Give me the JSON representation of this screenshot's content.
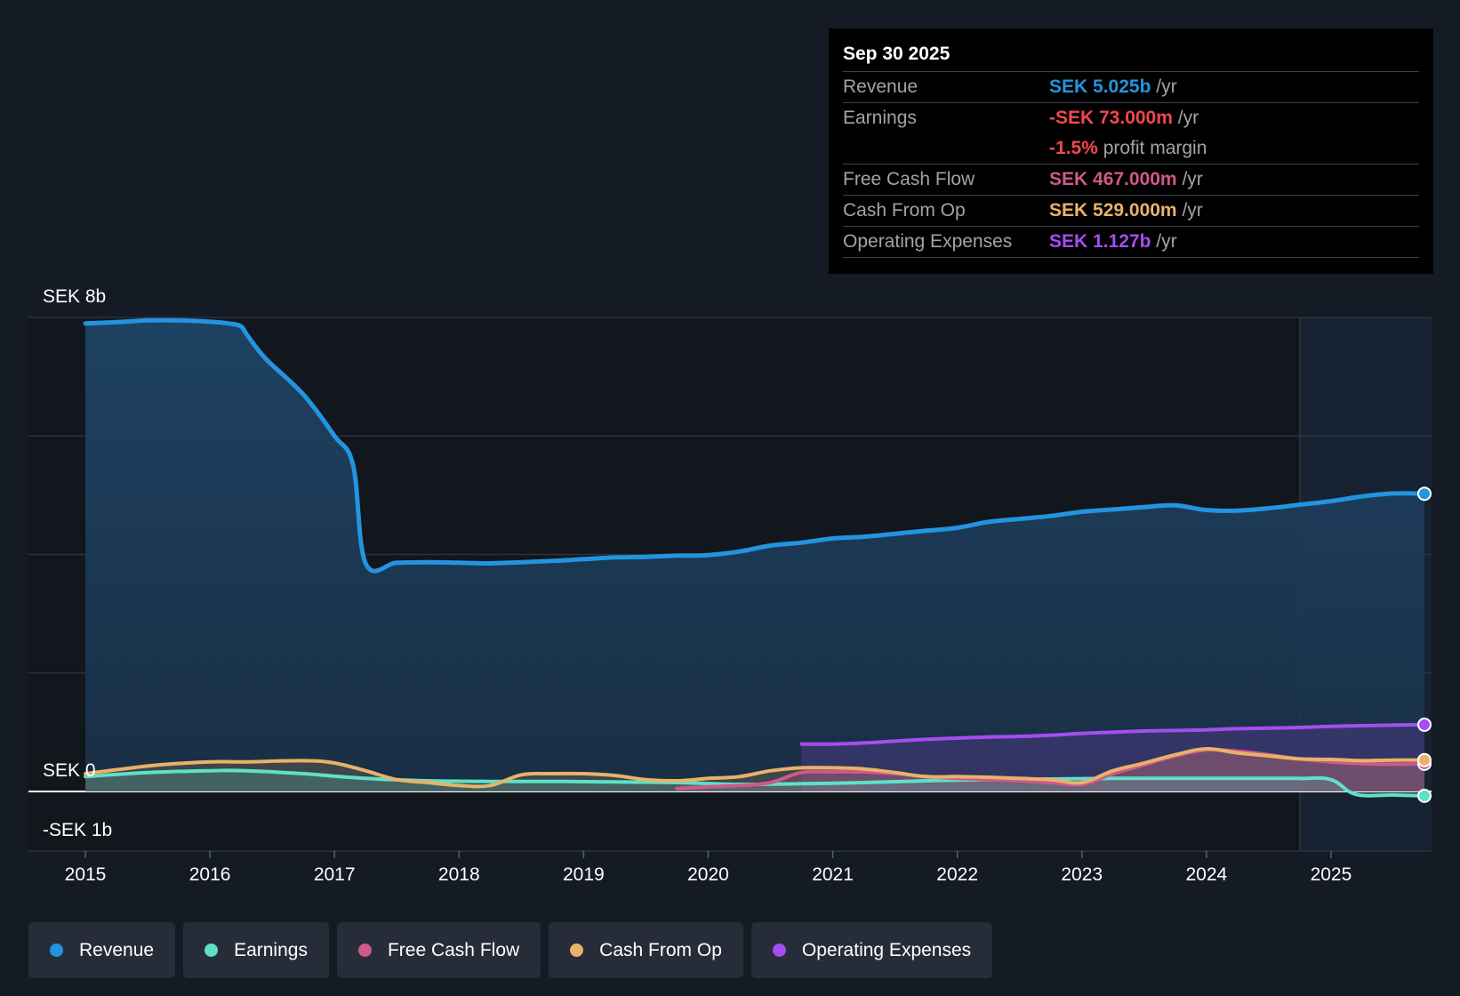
{
  "colors": {
    "background": "#151b24",
    "revenue": "#2394df",
    "earnings": "#5ee1c7",
    "free_cash_flow": "#d0588a",
    "cash_from_op": "#e8b26a",
    "operating_expenses": "#a44ef0"
  },
  "tooltip": {
    "date": "Sep 30 2025",
    "rows": [
      {
        "name": "Revenue",
        "value": "SEK 5.025b",
        "suffix": " /yr",
        "color": "#2394df"
      },
      {
        "name": "Earnings",
        "value": "-SEK 73.000m",
        "suffix": " /yr",
        "color": "#f0484e"
      },
      {
        "name": "",
        "value": "-1.5%",
        "suffix": " profit margin",
        "color": "#f0484e"
      },
      {
        "name": "Free Cash Flow",
        "value": "SEK 467.000m",
        "suffix": " /yr",
        "color": "#d0588a"
      },
      {
        "name": "Cash From Op",
        "value": "SEK 529.000m",
        "suffix": " /yr",
        "color": "#e8b26a"
      },
      {
        "name": "Operating Expenses",
        "value": "SEK 1.127b",
        "suffix": " /yr",
        "color": "#a44ef0"
      }
    ]
  },
  "legend": [
    {
      "label": "Revenue",
      "color": "#2394df",
      "icon": "revenue-dot-icon"
    },
    {
      "label": "Earnings",
      "color": "#5ee1c7",
      "icon": "earnings-dot-icon"
    },
    {
      "label": "Free Cash Flow",
      "color": "#d0588a",
      "icon": "free-cash-flow-dot-icon"
    },
    {
      "label": "Cash From Op",
      "color": "#e8b26a",
      "icon": "cash-from-op-dot-icon"
    },
    {
      "label": "Operating Expenses",
      "color": "#a44ef0",
      "icon": "operating-expenses-dot-icon"
    }
  ],
  "chart_data": {
    "type": "area",
    "title": "",
    "xlabel": "",
    "ylabel": "",
    "ylim": [
      -1,
      8
    ],
    "y_axis_labels": [
      {
        "value": 8,
        "label": "SEK 8b"
      },
      {
        "value": 0,
        "label": "SEK 0"
      },
      {
        "value": -1,
        "label": "-SEK 1b"
      }
    ],
    "gridlines": [
      0,
      2,
      4,
      6,
      8
    ],
    "xlim": [
      2014.55,
      2025.8
    ],
    "x_ticks": [
      2015,
      2016,
      2017,
      2018,
      2019,
      2020,
      2021,
      2022,
      2023,
      2024,
      2025
    ],
    "x_tick_labels": [
      "2015",
      "2016",
      "2017",
      "2018",
      "2019",
      "2020",
      "2021",
      "2022",
      "2023",
      "2024",
      "2025"
    ],
    "forecast_start": 2024.75,
    "series": [
      {
        "name": "Revenue",
        "key": "revenue",
        "x": [
          2015.0,
          2015.25,
          2015.5,
          2015.75,
          2016.0,
          2016.15,
          2016.25,
          2016.3,
          2016.45,
          2016.75,
          2017.0,
          2017.15,
          2017.25,
          2017.5,
          2017.75,
          2018.0,
          2018.25,
          2018.5,
          2018.75,
          2019.0,
          2019.25,
          2019.5,
          2019.75,
          2020.0,
          2020.25,
          2020.5,
          2020.75,
          2021.0,
          2021.25,
          2021.5,
          2021.75,
          2022.0,
          2022.25,
          2022.5,
          2022.75,
          2023.0,
          2023.25,
          2023.5,
          2023.75,
          2024.0,
          2024.25,
          2024.5,
          2024.75,
          2025.0,
          2025.25,
          2025.5,
          2025.75
        ],
        "values": [
          7.9,
          7.92,
          7.95,
          7.95,
          7.93,
          7.9,
          7.85,
          7.7,
          7.3,
          6.7,
          6.0,
          5.5,
          3.85,
          3.86,
          3.87,
          3.86,
          3.85,
          3.87,
          3.89,
          3.92,
          3.95,
          3.96,
          3.98,
          3.99,
          4.05,
          4.15,
          4.2,
          4.27,
          4.3,
          4.35,
          4.4,
          4.45,
          4.55,
          4.6,
          4.65,
          4.72,
          4.76,
          4.8,
          4.83,
          4.75,
          4.74,
          4.78,
          4.84,
          4.9,
          4.98,
          5.03,
          5.025
        ]
      },
      {
        "name": "Earnings",
        "key": "earnings",
        "x": [
          2015.0,
          2015.5,
          2016.0,
          2016.3,
          2016.75,
          2017.25,
          2017.75,
          2018.25,
          2018.75,
          2019.25,
          2019.75,
          2020.25,
          2020.75,
          2021.25,
          2021.75,
          2022.25,
          2022.75,
          2023.25,
          2023.75,
          2024.25,
          2024.75,
          2025.0,
          2025.2,
          2025.5,
          2025.75
        ],
        "values": [
          0.25,
          0.32,
          0.35,
          0.35,
          0.3,
          0.22,
          0.18,
          0.17,
          0.17,
          0.16,
          0.15,
          0.12,
          0.13,
          0.15,
          0.18,
          0.2,
          0.21,
          0.22,
          0.22,
          0.22,
          0.22,
          0.2,
          -0.05,
          -0.06,
          -0.073
        ]
      },
      {
        "name": "Free Cash Flow",
        "key": "free_cash_flow",
        "x": [
          2019.75,
          2020.0,
          2020.25,
          2020.5,
          2020.75,
          2021.0,
          2021.25,
          2021.5,
          2021.75,
          2022.0,
          2022.25,
          2022.5,
          2022.75,
          2023.0,
          2023.25,
          2023.5,
          2023.75,
          2024.0,
          2024.25,
          2024.5,
          2024.75,
          2025.0,
          2025.25,
          2025.5,
          2025.75
        ],
        "values": [
          0.05,
          0.08,
          0.1,
          0.15,
          0.32,
          0.33,
          0.33,
          0.3,
          0.25,
          0.22,
          0.2,
          0.18,
          0.15,
          0.12,
          0.3,
          0.45,
          0.6,
          0.7,
          0.68,
          0.62,
          0.55,
          0.5,
          0.47,
          0.46,
          0.467
        ]
      },
      {
        "name": "Cash From Op",
        "key": "cash_from_op",
        "x": [
          2015.0,
          2015.3,
          2015.6,
          2016.0,
          2016.3,
          2016.75,
          2017.0,
          2017.25,
          2017.5,
          2017.75,
          2018.0,
          2018.25,
          2018.5,
          2018.75,
          2019.0,
          2019.25,
          2019.5,
          2019.75,
          2020.0,
          2020.25,
          2020.5,
          2020.75,
          2021.0,
          2021.25,
          2021.5,
          2021.75,
          2022.0,
          2022.25,
          2022.5,
          2022.75,
          2023.0,
          2023.25,
          2023.5,
          2023.75,
          2024.0,
          2024.25,
          2024.5,
          2024.75,
          2025.0,
          2025.25,
          2025.5,
          2025.75
        ],
        "values": [
          0.3,
          0.38,
          0.45,
          0.5,
          0.5,
          0.52,
          0.48,
          0.35,
          0.2,
          0.15,
          0.1,
          0.1,
          0.28,
          0.3,
          0.3,
          0.27,
          0.2,
          0.18,
          0.22,
          0.25,
          0.35,
          0.4,
          0.4,
          0.38,
          0.32,
          0.25,
          0.25,
          0.24,
          0.22,
          0.2,
          0.15,
          0.35,
          0.48,
          0.62,
          0.72,
          0.65,
          0.6,
          0.55,
          0.54,
          0.52,
          0.53,
          0.529
        ]
      },
      {
        "name": "Operating Expenses",
        "key": "operating_expenses",
        "x": [
          2020.75,
          2021.0,
          2021.25,
          2021.5,
          2021.75,
          2022.0,
          2022.25,
          2022.5,
          2022.75,
          2023.0,
          2023.25,
          2023.5,
          2023.75,
          2024.0,
          2024.25,
          2024.5,
          2024.75,
          2025.0,
          2025.25,
          2025.5,
          2025.75
        ],
        "values": [
          0.8,
          0.8,
          0.82,
          0.85,
          0.88,
          0.9,
          0.92,
          0.93,
          0.95,
          0.98,
          1.0,
          1.02,
          1.03,
          1.04,
          1.06,
          1.07,
          1.08,
          1.1,
          1.11,
          1.12,
          1.127
        ]
      }
    ]
  }
}
